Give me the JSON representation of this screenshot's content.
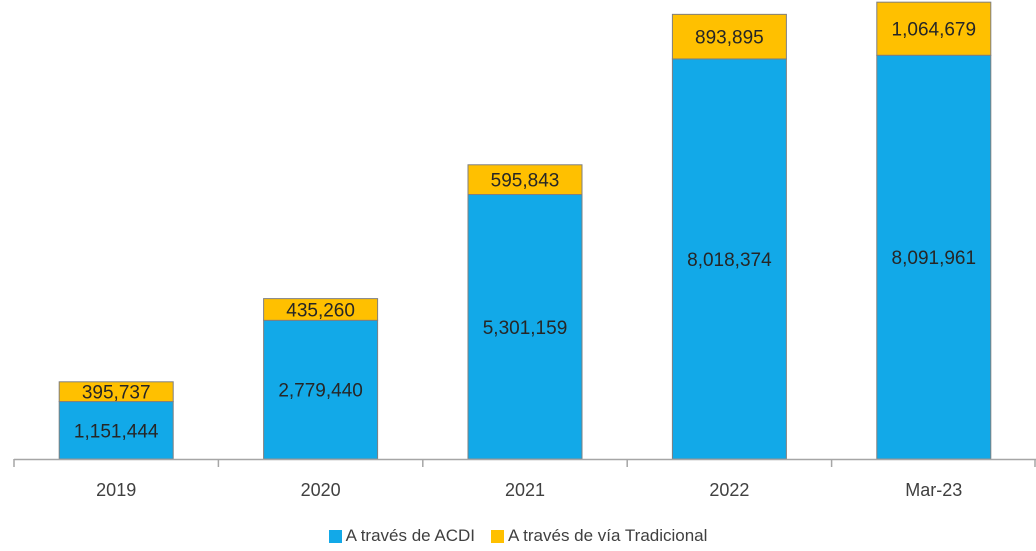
{
  "chart_data": {
    "type": "bar",
    "stacked": true,
    "categories": [
      "2019",
      "2020",
      "2021",
      "2022",
      "Mar-23"
    ],
    "series": [
      {
        "name": "A través de ACDI",
        "color": "#12A9E8",
        "values": [
          1151444,
          2779440,
          5301159,
          8018374,
          8091961
        ],
        "labels": [
          "1,151,444",
          "2,779,440",
          "5,301,159",
          "8,018,374",
          "8,091,961"
        ]
      },
      {
        "name": "A través de vía Tradicional",
        "color": "#FFC000",
        "values": [
          395737,
          435260,
          595843,
          893895,
          1064679
        ],
        "labels": [
          "395,737",
          "435,260",
          "595,843",
          "893,895",
          "1,064,679"
        ]
      }
    ],
    "ylim": [
      0,
      9200000
    ],
    "grid": false,
    "legend_position": "bottom"
  }
}
